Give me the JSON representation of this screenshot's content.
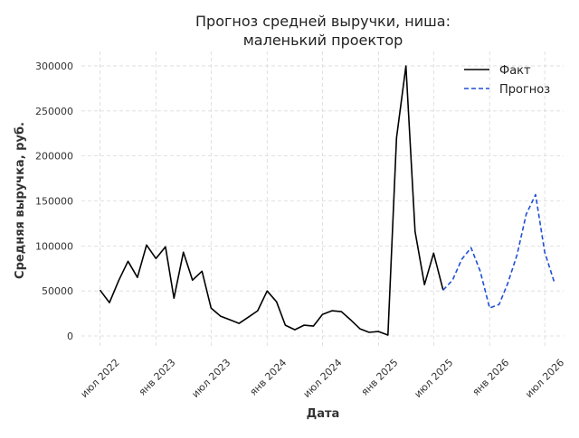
{
  "chart_data": {
    "type": "line",
    "title": [
      "Прогноз средней выручки, ниша:",
      "маленький проектор"
    ],
    "xlabel": "Дата",
    "ylabel": "Средняя выручка, руб.",
    "ylim": [
      -12000,
      316000
    ],
    "xlim": [
      "2022-05-01",
      "2026-09-01"
    ],
    "yticks": [
      0,
      50000,
      100000,
      150000,
      200000,
      250000,
      300000
    ],
    "xticks": [
      {
        "date": "2022-07-01",
        "label": "июл 2022"
      },
      {
        "date": "2023-01-01",
        "label": "янв 2023"
      },
      {
        "date": "2023-07-01",
        "label": "июл 2023"
      },
      {
        "date": "2024-01-01",
        "label": "янв 2024"
      },
      {
        "date": "2024-07-01",
        "label": "июл 2024"
      },
      {
        "date": "2025-01-01",
        "label": "янв 2025"
      },
      {
        "date": "2025-07-01",
        "label": "июл 2025"
      },
      {
        "date": "2026-01-01",
        "label": "янв 2026"
      },
      {
        "date": "2026-07-01",
        "label": "июл 2026"
      }
    ],
    "grid": true,
    "legend_position": "top-right",
    "series": [
      {
        "name": "Факт",
        "color": "#000000",
        "style": "solid",
        "points": [
          [
            "2022-07-01",
            51000
          ],
          [
            "2022-08-01",
            37000
          ],
          [
            "2022-09-01",
            62000
          ],
          [
            "2022-10-01",
            83000
          ],
          [
            "2022-11-01",
            65000
          ],
          [
            "2022-12-01",
            101000
          ],
          [
            "2023-01-01",
            86000
          ],
          [
            "2023-02-01",
            99000
          ],
          [
            "2023-03-01",
            42000
          ],
          [
            "2023-04-01",
            93000
          ],
          [
            "2023-05-01",
            62000
          ],
          [
            "2023-06-01",
            72000
          ],
          [
            "2023-07-01",
            31000
          ],
          [
            "2023-08-01",
            22000
          ],
          [
            "2023-09-01",
            18000
          ],
          [
            "2023-10-01",
            14000
          ],
          [
            "2023-11-01",
            21000
          ],
          [
            "2023-12-01",
            28000
          ],
          [
            "2024-01-01",
            50000
          ],
          [
            "2024-02-01",
            38000
          ],
          [
            "2024-03-01",
            12000
          ],
          [
            "2024-04-01",
            7000
          ],
          [
            "2024-05-01",
            12000
          ],
          [
            "2024-06-01",
            11000
          ],
          [
            "2024-07-01",
            24000
          ],
          [
            "2024-08-01",
            28000
          ],
          [
            "2024-09-01",
            27000
          ],
          [
            "2024-10-01",
            18000
          ],
          [
            "2024-11-01",
            8000
          ],
          [
            "2024-12-01",
            4000
          ],
          [
            "2025-01-01",
            5000
          ],
          [
            "2025-02-01",
            1000
          ],
          [
            "2025-03-01",
            220000
          ],
          [
            "2025-04-01",
            300000
          ],
          [
            "2025-05-01",
            116000
          ],
          [
            "2025-06-01",
            57000
          ],
          [
            "2025-07-01",
            92000
          ],
          [
            "2025-08-01",
            51000
          ]
        ]
      },
      {
        "name": "Прогноз",
        "color": "#1f4fd6",
        "style": "dashed",
        "points": [
          [
            "2025-08-01",
            51000
          ],
          [
            "2025-09-01",
            62000
          ],
          [
            "2025-10-01",
            85000
          ],
          [
            "2025-11-01",
            98000
          ],
          [
            "2025-12-01",
            72000
          ],
          [
            "2026-01-01",
            31000
          ],
          [
            "2026-02-01",
            35000
          ],
          [
            "2026-03-01",
            58000
          ],
          [
            "2026-04-01",
            90000
          ],
          [
            "2026-05-01",
            135000
          ],
          [
            "2026-06-01",
            157000
          ],
          [
            "2026-07-01",
            93000
          ],
          [
            "2026-08-01",
            60000
          ]
        ]
      }
    ]
  }
}
